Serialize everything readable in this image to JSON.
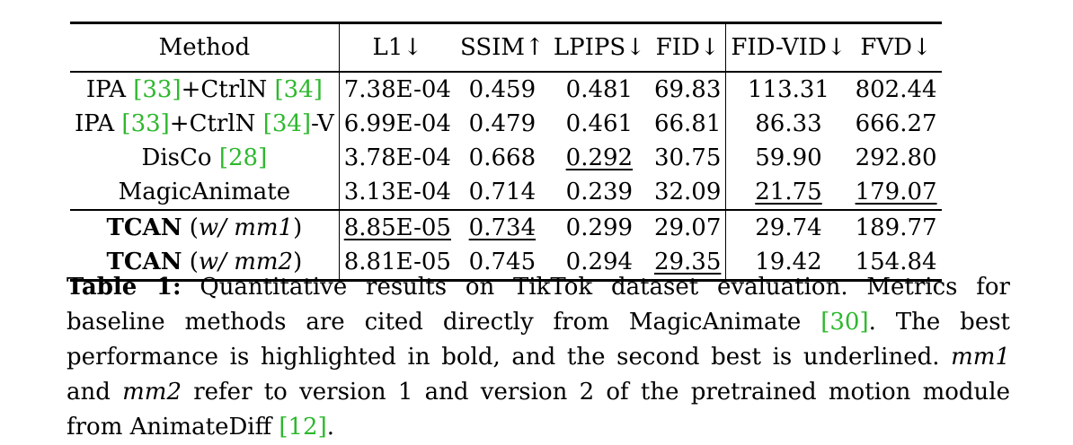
{
  "table": {
    "headers": {
      "method": "Method",
      "l1": "L1↓",
      "ssim": "SSIM↑",
      "lpips": "LPIPS↓",
      "fid": "FID↓",
      "fidvid": "FID-VID↓",
      "fvd": "FVD↓"
    },
    "rows": [
      {
        "name": "IPA",
        "cite1": "[33]",
        "mid": "+CtrlN",
        "cite2": "[34]",
        "suffix": "",
        "l1": "7.38E-04",
        "ssim": "0.459",
        "lpips": "0.481",
        "fid": "69.83",
        "fidvid": "113.31",
        "fvd": "802.44"
      },
      {
        "name": "IPA",
        "cite1": "[33]",
        "mid": "+CtrlN",
        "cite2": "[34]",
        "suffix": "-V",
        "l1": "6.99E-04",
        "ssim": "0.479",
        "lpips": "0.461",
        "fid": "66.81",
        "fidvid": "86.33",
        "fvd": "666.27"
      },
      {
        "name": "DisCo",
        "cite1": "[28]",
        "l1": "3.78E-04",
        "ssim": "0.668",
        "lpips": "0.292",
        "fid": "30.75",
        "fidvid": "59.90",
        "fvd": "292.80"
      },
      {
        "name": "MagicAnimate",
        "l1": "3.13E-04",
        "ssim": "0.714",
        "lpips": "0.239",
        "fid": "32.09",
        "fidvid": "21.75",
        "fvd": "179.07"
      },
      {
        "name": "TCAN",
        "variant": "w/ mm1",
        "l1": "8.85E-05",
        "ssim": "0.734",
        "lpips": "0.299",
        "fid": "29.07",
        "fidvid": "29.74",
        "fvd": "189.77"
      },
      {
        "name": "TCAN",
        "variant": "w/ mm2",
        "l1": "8.81E-05",
        "ssim": "0.745",
        "lpips": "0.294",
        "fid": "29.35",
        "fidvid": "19.42",
        "fvd": "154.84"
      }
    ]
  },
  "caption": {
    "label": "Table 1:",
    "s1": " Quantitative results on TikTok dataset evaluation. Metrics for baseline methods are cited directly from MagicAnimate ",
    "cite_a": "[30]",
    "s2": ". The best performance is highlighted in bold, and the second best is underlined. ",
    "mm1": "mm1",
    "s3": " and ",
    "mm2": "mm2",
    "s4": " refer to version 1 and version 2 of the pretrained motion module from AnimateDiff ",
    "cite_b": "[12]",
    "s5": "."
  },
  "colors": {
    "citation": "#2eb82e",
    "text": "#000000"
  }
}
